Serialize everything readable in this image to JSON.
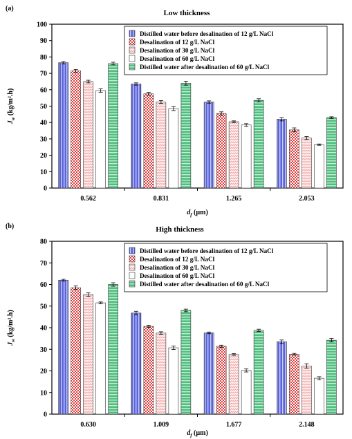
{
  "figure": {
    "legend": [
      {
        "label": "Distilled water before desalination of 12 g/L NaCl",
        "pattern": "blue-stripes"
      },
      {
        "label": "Desalination of 12 g/L NaCl",
        "pattern": "red-checker"
      },
      {
        "label": "Desalination of 30 g/L NaCl",
        "pattern": "pink-zigzag"
      },
      {
        "label": "Desalination of 60 g/L NaCl",
        "pattern": "white-plain"
      },
      {
        "label": "Distilled water after desalination of 60 g/L NaCl",
        "pattern": "green-stripes"
      }
    ],
    "colors": {
      "blue": "#5a64d8",
      "red": "#e23b3b",
      "pink": "#f2a6a6",
      "green": "#4fbf7f",
      "axis": "#000000"
    }
  },
  "chart_data": [
    {
      "type": "bar",
      "panel_label": "(a)",
      "title": "Low thickness",
      "xlabel_main": "d",
      "xlabel_sub": "f",
      "xlabel_unit": " (µm)",
      "ylabel_main": "J",
      "ylabel_sub": "w",
      "ylabel_unit": " (kg/m².h)",
      "ylim": [
        0,
        100
      ],
      "yticks": [
        0,
        10,
        20,
        30,
        40,
        50,
        60,
        70,
        80,
        90,
        100
      ],
      "grid": false,
      "legend_position": "top-right",
      "categories": [
        "0.562",
        "0.831",
        "1.265",
        "2.053"
      ],
      "series": [
        {
          "name": "Distilled water before desalination of 12 g/L NaCl",
          "values": [
            76.5,
            63.5,
            52.5,
            42.0
          ],
          "errors": [
            0.7,
            0.7,
            0.7,
            1.0
          ]
        },
        {
          "name": "Desalination of 12 g/L NaCl",
          "values": [
            71.5,
            57.5,
            45.5,
            35.5
          ],
          "errors": [
            0.8,
            0.9,
            1.0,
            1.2
          ]
        },
        {
          "name": "Desalination of 30 g/L NaCl",
          "values": [
            65.0,
            52.5,
            40.5,
            30.5
          ],
          "errors": [
            0.8,
            0.9,
            0.5,
            0.9
          ]
        },
        {
          "name": "Desalination of 60 g/L NaCl",
          "values": [
            59.5,
            48.5,
            38.5,
            26.5
          ],
          "errors": [
            1.0,
            1.2,
            0.8,
            0.4
          ]
        },
        {
          "name": "Distilled water after desalination of 60 g/L NaCl",
          "values": [
            76.0,
            64.0,
            53.5,
            43.0
          ],
          "errors": [
            0.8,
            1.2,
            1.0,
            0.5
          ]
        }
      ]
    },
    {
      "type": "bar",
      "panel_label": "(b)",
      "title": "High thickness",
      "xlabel_main": "d",
      "xlabel_sub": "f",
      "xlabel_unit": " (µm)",
      "ylabel_main": "J",
      "ylabel_sub": "w",
      "ylabel_unit": " (kg/m².h)",
      "ylim": [
        0,
        80
      ],
      "yticks": [
        0,
        10,
        20,
        30,
        40,
        50,
        60,
        70,
        80
      ],
      "grid": false,
      "legend_position": "top-right",
      "categories": [
        "0.630",
        "1.009",
        "1.677",
        "2.148"
      ],
      "series": [
        {
          "name": "Distilled water before desalination of 12 g/L NaCl",
          "values": [
            62.0,
            46.8,
            37.6,
            33.5
          ],
          "errors": [
            0.4,
            0.8,
            0.4,
            0.8
          ]
        },
        {
          "name": "Desalination of 12 g/L NaCl",
          "values": [
            58.5,
            40.6,
            31.4,
            27.7
          ],
          "errors": [
            0.8,
            0.5,
            0.5,
            0.4
          ]
        },
        {
          "name": "Desalination of 30 g/L NaCl",
          "values": [
            55.3,
            37.5,
            27.6,
            22.3
          ],
          "errors": [
            0.8,
            0.6,
            0.4,
            1.0
          ]
        },
        {
          "name": "Desalination of 60 g/L NaCl",
          "values": [
            51.5,
            30.7,
            20.2,
            16.6
          ],
          "errors": [
            0.4,
            0.8,
            0.7,
            0.7
          ]
        },
        {
          "name": "Distilled water after desalination of 60 g/L NaCl",
          "values": [
            60.0,
            48.0,
            38.8,
            34.2
          ],
          "errors": [
            0.8,
            0.6,
            0.5,
            0.8
          ]
        }
      ]
    }
  ]
}
